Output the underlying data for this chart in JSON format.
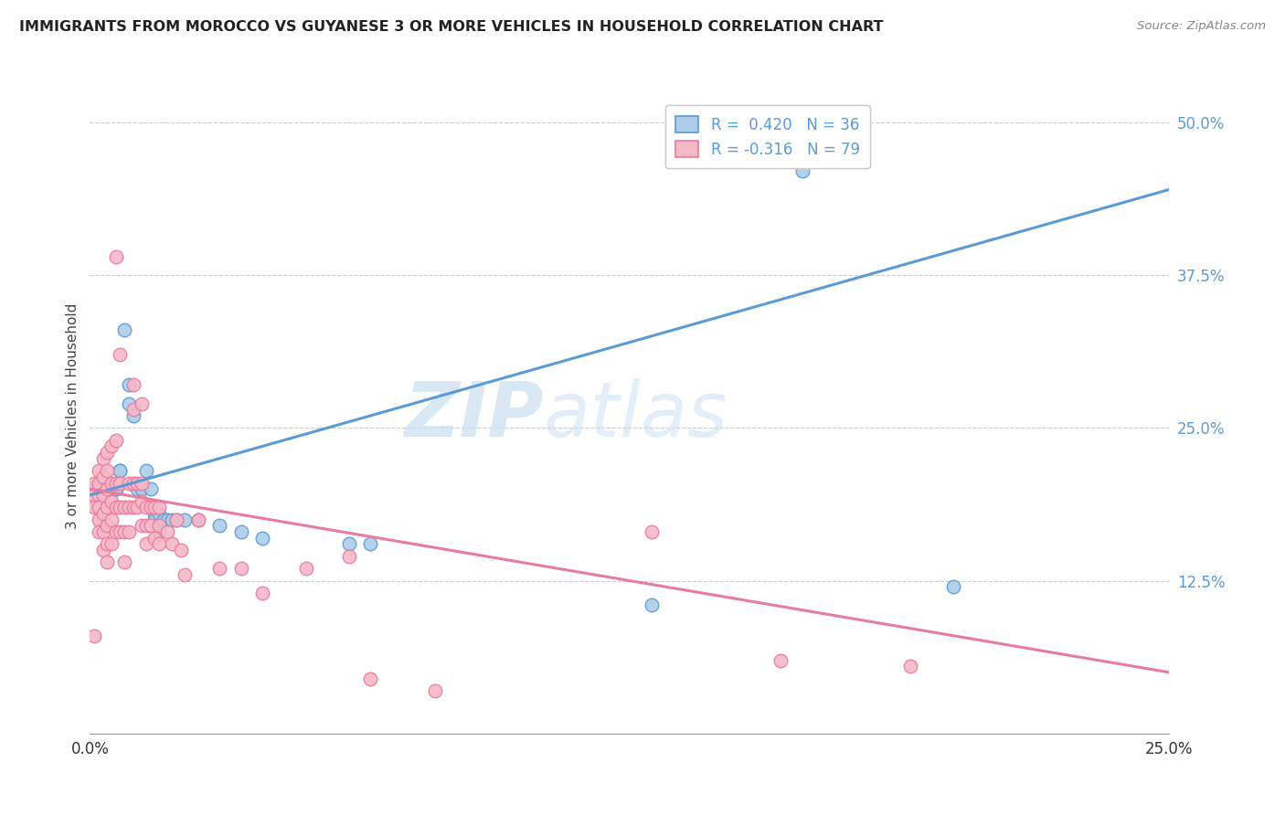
{
  "title": "IMMIGRANTS FROM MOROCCO VS GUYANESE 3 OR MORE VEHICLES IN HOUSEHOLD CORRELATION CHART",
  "source": "Source: ZipAtlas.com",
  "ylabel": "3 or more Vehicles in Household",
  "xlim": [
    0.0,
    0.25
  ],
  "ylim": [
    0.0,
    0.52
  ],
  "xtick_vals": [
    0.0,
    0.25
  ],
  "xtick_labels": [
    "0.0%",
    "25.0%"
  ],
  "ytick_vals": [
    0.5,
    0.375,
    0.25,
    0.125,
    0.0
  ],
  "ytick_labels": [
    "50.0%",
    "37.5%",
    "25.0%",
    "12.5%",
    ""
  ],
  "blue_color": "#5b9bd5",
  "pink_color": "#e87ca0",
  "blue_fill": "#aecce8",
  "pink_fill": "#f5b8c8",
  "watermark_zip": "ZIP",
  "watermark_atlas": "atlas",
  "blue_r": 0.42,
  "pink_r": -0.316,
  "blue_n": 36,
  "pink_n": 79,
  "blue_scatter": [
    [
      0.001,
      0.2
    ],
    [
      0.002,
      0.2
    ],
    [
      0.003,
      0.2
    ],
    [
      0.004,
      0.2
    ],
    [
      0.005,
      0.2
    ],
    [
      0.005,
      0.2
    ],
    [
      0.006,
      0.2
    ],
    [
      0.006,
      0.2
    ],
    [
      0.007,
      0.215
    ],
    [
      0.007,
      0.215
    ],
    [
      0.008,
      0.33
    ],
    [
      0.009,
      0.285
    ],
    [
      0.009,
      0.27
    ],
    [
      0.01,
      0.26
    ],
    [
      0.011,
      0.2
    ],
    [
      0.012,
      0.2
    ],
    [
      0.013,
      0.215
    ],
    [
      0.014,
      0.2
    ],
    [
      0.015,
      0.18
    ],
    [
      0.015,
      0.175
    ],
    [
      0.016,
      0.18
    ],
    [
      0.016,
      0.165
    ],
    [
      0.017,
      0.175
    ],
    [
      0.018,
      0.175
    ],
    [
      0.019,
      0.175
    ],
    [
      0.02,
      0.175
    ],
    [
      0.022,
      0.175
    ],
    [
      0.025,
      0.175
    ],
    [
      0.03,
      0.17
    ],
    [
      0.035,
      0.165
    ],
    [
      0.04,
      0.16
    ],
    [
      0.06,
      0.155
    ],
    [
      0.065,
      0.155
    ],
    [
      0.13,
      0.105
    ],
    [
      0.165,
      0.46
    ],
    [
      0.2,
      0.12
    ]
  ],
  "pink_scatter": [
    [
      0.001,
      0.205
    ],
    [
      0.001,
      0.195
    ],
    [
      0.001,
      0.185
    ],
    [
      0.001,
      0.08
    ],
    [
      0.002,
      0.215
    ],
    [
      0.002,
      0.205
    ],
    [
      0.002,
      0.195
    ],
    [
      0.002,
      0.185
    ],
    [
      0.002,
      0.175
    ],
    [
      0.002,
      0.165
    ],
    [
      0.003,
      0.225
    ],
    [
      0.003,
      0.21
    ],
    [
      0.003,
      0.195
    ],
    [
      0.003,
      0.18
    ],
    [
      0.003,
      0.165
    ],
    [
      0.003,
      0.15
    ],
    [
      0.004,
      0.23
    ],
    [
      0.004,
      0.215
    ],
    [
      0.004,
      0.2
    ],
    [
      0.004,
      0.185
    ],
    [
      0.004,
      0.17
    ],
    [
      0.004,
      0.155
    ],
    [
      0.004,
      0.14
    ],
    [
      0.005,
      0.235
    ],
    [
      0.005,
      0.205
    ],
    [
      0.005,
      0.19
    ],
    [
      0.005,
      0.175
    ],
    [
      0.005,
      0.155
    ],
    [
      0.006,
      0.39
    ],
    [
      0.006,
      0.24
    ],
    [
      0.006,
      0.205
    ],
    [
      0.006,
      0.185
    ],
    [
      0.006,
      0.165
    ],
    [
      0.007,
      0.31
    ],
    [
      0.007,
      0.205
    ],
    [
      0.007,
      0.185
    ],
    [
      0.007,
      0.165
    ],
    [
      0.008,
      0.185
    ],
    [
      0.008,
      0.165
    ],
    [
      0.008,
      0.14
    ],
    [
      0.009,
      0.205
    ],
    [
      0.009,
      0.185
    ],
    [
      0.009,
      0.165
    ],
    [
      0.01,
      0.285
    ],
    [
      0.01,
      0.265
    ],
    [
      0.01,
      0.205
    ],
    [
      0.01,
      0.185
    ],
    [
      0.011,
      0.205
    ],
    [
      0.011,
      0.185
    ],
    [
      0.012,
      0.27
    ],
    [
      0.012,
      0.205
    ],
    [
      0.012,
      0.19
    ],
    [
      0.012,
      0.17
    ],
    [
      0.013,
      0.185
    ],
    [
      0.013,
      0.17
    ],
    [
      0.013,
      0.155
    ],
    [
      0.014,
      0.185
    ],
    [
      0.014,
      0.17
    ],
    [
      0.015,
      0.185
    ],
    [
      0.015,
      0.16
    ],
    [
      0.016,
      0.185
    ],
    [
      0.016,
      0.17
    ],
    [
      0.016,
      0.155
    ],
    [
      0.018,
      0.165
    ],
    [
      0.019,
      0.155
    ],
    [
      0.02,
      0.175
    ],
    [
      0.021,
      0.15
    ],
    [
      0.022,
      0.13
    ],
    [
      0.025,
      0.175
    ],
    [
      0.03,
      0.135
    ],
    [
      0.035,
      0.135
    ],
    [
      0.04,
      0.115
    ],
    [
      0.05,
      0.135
    ],
    [
      0.06,
      0.145
    ],
    [
      0.065,
      0.045
    ],
    [
      0.08,
      0.035
    ],
    [
      0.13,
      0.165
    ],
    [
      0.16,
      0.06
    ],
    [
      0.19,
      0.055
    ]
  ],
  "blue_line": [
    [
      0.0,
      0.25
    ],
    [
      0.195,
      0.445
    ]
  ],
  "pink_line": [
    [
      0.0,
      0.25
    ],
    [
      0.2,
      0.05
    ]
  ]
}
